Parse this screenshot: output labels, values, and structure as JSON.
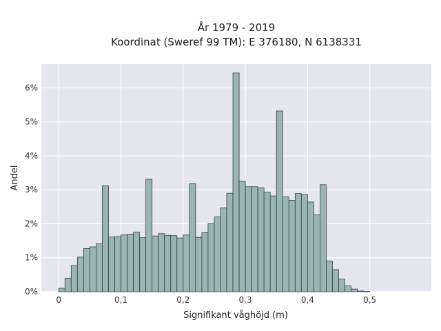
{
  "chart_data": {
    "type": "bar",
    "title": "År 1979 - 2019",
    "subtitle": "Koordinat (Sweref 99 TM): E 376180, N 6138331",
    "xlabel": "Signifikant våghöjd (m)",
    "ylabel": "Andel",
    "xlim": [
      -0.028,
      0.599
    ],
    "ylim": [
      0,
      6.7
    ],
    "x_ticks": [
      {
        "value": 0,
        "label": "0"
      },
      {
        "value": 0.1,
        "label": "0,1"
      },
      {
        "value": 0.2,
        "label": "0,2"
      },
      {
        "value": 0.3,
        "label": "0,3"
      },
      {
        "value": 0.4,
        "label": "0,4"
      },
      {
        "value": 0.5,
        "label": "0,5"
      }
    ],
    "y_ticks": [
      {
        "value": 0,
        "label": "0%"
      },
      {
        "value": 1,
        "label": "1%"
      },
      {
        "value": 2,
        "label": "2%"
      },
      {
        "value": 3,
        "label": "3%"
      },
      {
        "value": 4,
        "label": "4%"
      },
      {
        "value": 5,
        "label": "5%"
      },
      {
        "value": 6,
        "label": "6%"
      }
    ],
    "bin_start": 0.0,
    "bin_width": 0.01,
    "values": [
      0.1,
      0.4,
      0.77,
      1.02,
      1.27,
      1.32,
      1.41,
      3.12,
      1.61,
      1.62,
      1.67,
      1.69,
      1.75,
      1.59,
      3.31,
      1.64,
      1.71,
      1.66,
      1.65,
      1.58,
      1.67,
      3.18,
      1.6,
      1.74,
      2.0,
      2.2,
      2.47,
      2.9,
      6.44,
      3.25,
      3.09,
      3.09,
      3.06,
      2.93,
      2.82,
      5.32,
      2.79,
      2.69,
      2.89,
      2.86,
      2.64,
      2.26,
      3.15,
      0.9,
      0.65,
      0.37,
      0.17,
      0.08,
      0.02,
      0.01
    ],
    "grid": true,
    "background": "#e5e6f0",
    "bar_color": "#9bb4b4",
    "edge_color": "#2f3f3f"
  }
}
